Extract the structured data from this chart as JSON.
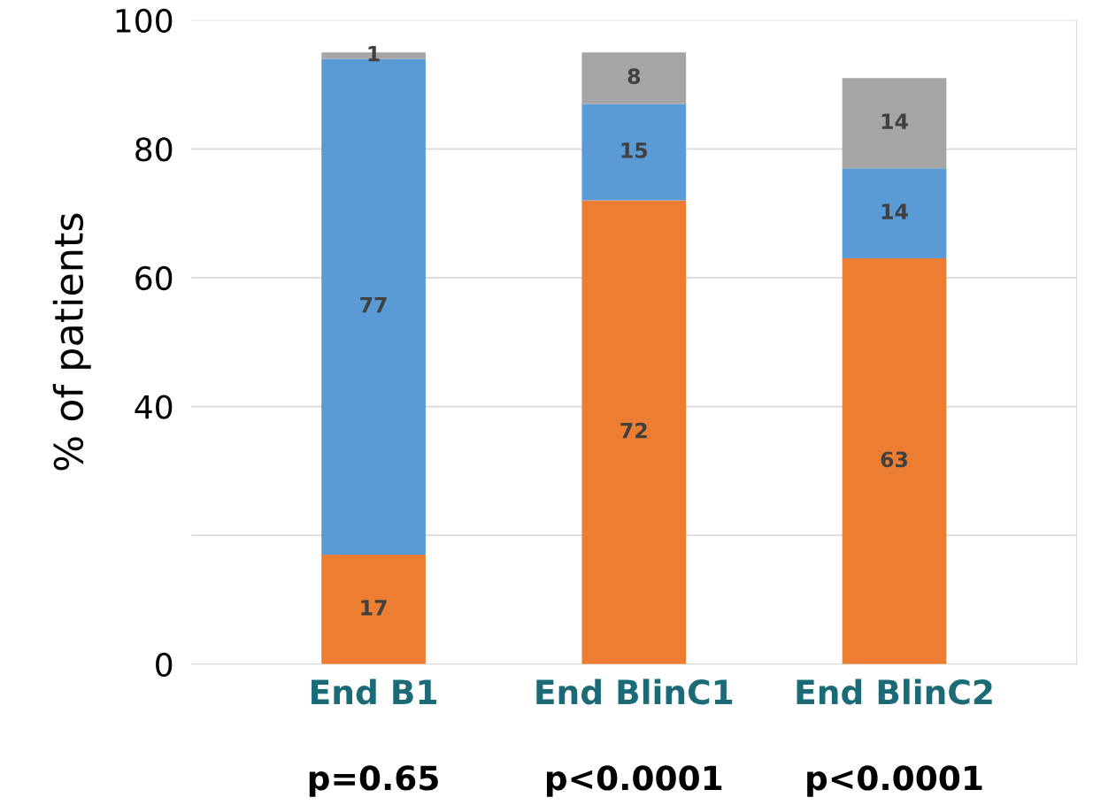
{
  "chart_data": {
    "type": "bar",
    "ylabel": "% of patients",
    "categories": [
      "End B1",
      "End BlinC1",
      "End BlinC2"
    ],
    "stacked": true,
    "data_labels": true,
    "series": [
      {
        "color": "#ed7d31",
        "values": [
          17,
          72,
          63
        ]
      },
      {
        "color": "#5b9bd5",
        "values": [
          77,
          15,
          14
        ]
      },
      {
        "color": "#a5a5a5",
        "values": [
          1,
          8,
          14
        ]
      }
    ],
    "ylim": [
      0,
      100
    ],
    "yticks": [
      0,
      {
        "value": 20,
        "label": null
      },
      40,
      60,
      80,
      100
    ],
    "grid": "y",
    "annotations": [
      "p=0.65",
      "p<0.0001",
      "p<0.0001"
    ]
  }
}
